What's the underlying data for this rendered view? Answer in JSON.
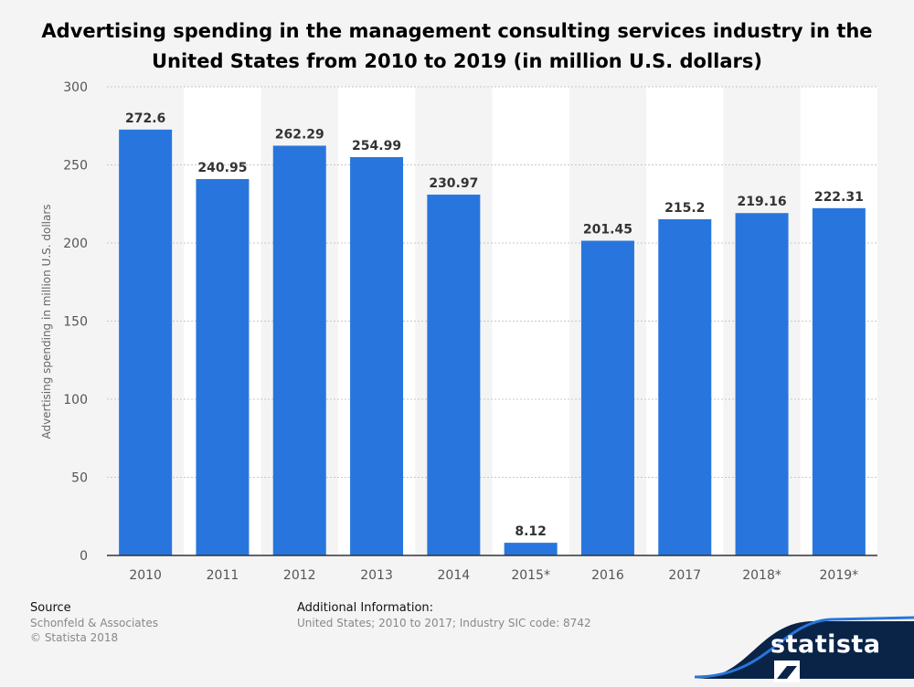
{
  "chart_data": {
    "type": "bar",
    "title": "Advertising spending in the management consulting services industry in the United States from 2010 to 2019 (in million U.S. dollars)",
    "title_lines": [
      "Advertising spending in the management consulting services industry in the",
      "United States from 2010 to 2019 (in million U.S. dollars)"
    ],
    "categories": [
      "2010",
      "2011",
      "2012",
      "2013",
      "2014",
      "2015*",
      "2016",
      "2017",
      "2018*",
      "2019*"
    ],
    "values": [
      272.6,
      240.95,
      262.29,
      254.99,
      230.97,
      8.12,
      201.45,
      215.2,
      219.16,
      222.31
    ],
    "value_labels": [
      "272.6",
      "240.95",
      "262.29",
      "254.99",
      "230.97",
      "8.12",
      "201.45",
      "215.2",
      "219.16",
      "222.31"
    ],
    "xlabel": "",
    "ylabel": "Advertising spending in million U.S. dollars",
    "ylim": [
      0,
      300
    ],
    "yticks": [
      0,
      50,
      100,
      150,
      200,
      250,
      300
    ],
    "grid": true,
    "bar_color": "#2876dd"
  },
  "footer": {
    "source_heading": "Source",
    "source_name": "Schonfeld & Associates",
    "copyright": "© Statista 2018",
    "info_heading": "Additional Information:",
    "info_text": "United States; 2010 to 2017; Industry SIC code: 8742"
  },
  "brand": {
    "name": "statista",
    "color": "#0a2447"
  }
}
